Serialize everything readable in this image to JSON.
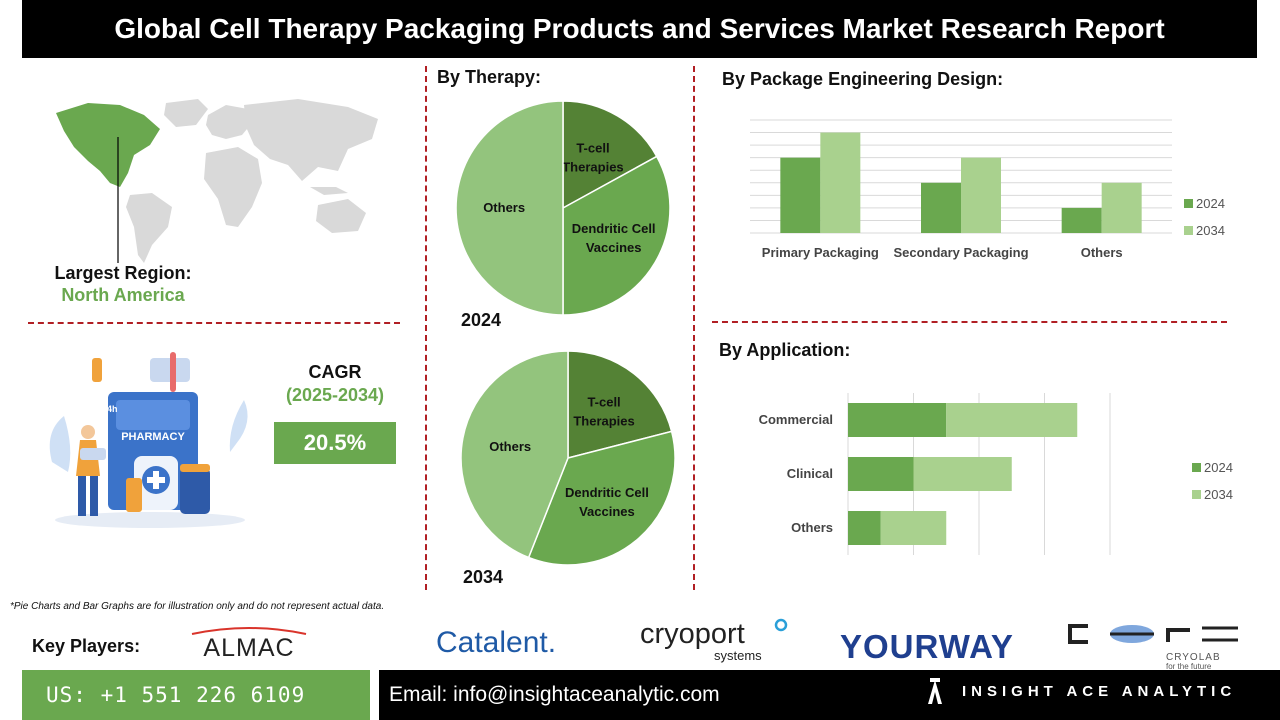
{
  "title": "Global Cell Therapy Packaging Products and Services Market Research Report",
  "region": {
    "label": "Largest Region:",
    "value": "North America"
  },
  "cagr": {
    "label": "CAGR",
    "period": "(2025-2034)",
    "value": "20.5%"
  },
  "pharmacy": {
    "sign": "PHARMACY",
    "hours": "24h"
  },
  "footnote": "*Pie Charts and Bar Graphs are for illustration only and do not represent actual data.",
  "key_players": {
    "label": "Key Players:",
    "logos": [
      "ALMAC",
      "Catalent.",
      "cryoport",
      "systems",
      "YOURWAY",
      "CRYOLAB",
      "for the future"
    ]
  },
  "contact": {
    "phone": "US: +1 551 226 6109",
    "email": "Email: info@insightaceanalytic.com"
  },
  "brand": {
    "name": "INSIGHT ACE ANALYTIC"
  },
  "colors": {
    "dark_green": "#548235",
    "mid_green": "#6aa84f",
    "light_green": "#93c47d",
    "pale_green": "#a9d18e",
    "title_bg": "#000000",
    "divider": "#b11f24"
  },
  "chart_data": [
    {
      "type": "pie",
      "title": "By Therapy:",
      "caption": "2024",
      "labels": [
        "T-cell Therapies",
        "Dendritic Cell Vaccines",
        "Others"
      ],
      "values": [
        17,
        33,
        50
      ],
      "colors": [
        "#548235",
        "#6aa84f",
        "#93c47d"
      ]
    },
    {
      "type": "pie",
      "caption": "2034",
      "labels": [
        "T-cell Therapies",
        "Dendritic Cell Vaccines",
        "Others"
      ],
      "values": [
        21,
        35,
        44
      ],
      "colors": [
        "#548235",
        "#6aa84f",
        "#93c47d"
      ]
    },
    {
      "type": "bar",
      "title": "By Package Engineering Design:",
      "categories": [
        "Primary Packaging",
        "Secondary Packaging",
        "Others"
      ],
      "series": [
        {
          "name": "2024",
          "values": [
            3,
            2,
            1
          ],
          "color": "#6aa84f"
        },
        {
          "name": "2034",
          "values": [
            4,
            3,
            2
          ],
          "color": "#a9d18e"
        }
      ],
      "ylim": [
        0,
        4.5
      ],
      "grid": true,
      "legend": "right"
    },
    {
      "type": "bar",
      "orientation": "horizontal",
      "title": "By Application:",
      "categories": [
        "Commercial",
        "Clinical",
        "Others"
      ],
      "series": [
        {
          "name": "2024",
          "values": [
            1.5,
            1.0,
            0.5
          ],
          "color": "#6aa84f"
        },
        {
          "name": "2034",
          "values": [
            2.0,
            1.5,
            1.0
          ],
          "color": "#a9d18e"
        }
      ],
      "xlim": [
        0,
        4.0
      ],
      "grid": true,
      "legend": "right"
    }
  ]
}
